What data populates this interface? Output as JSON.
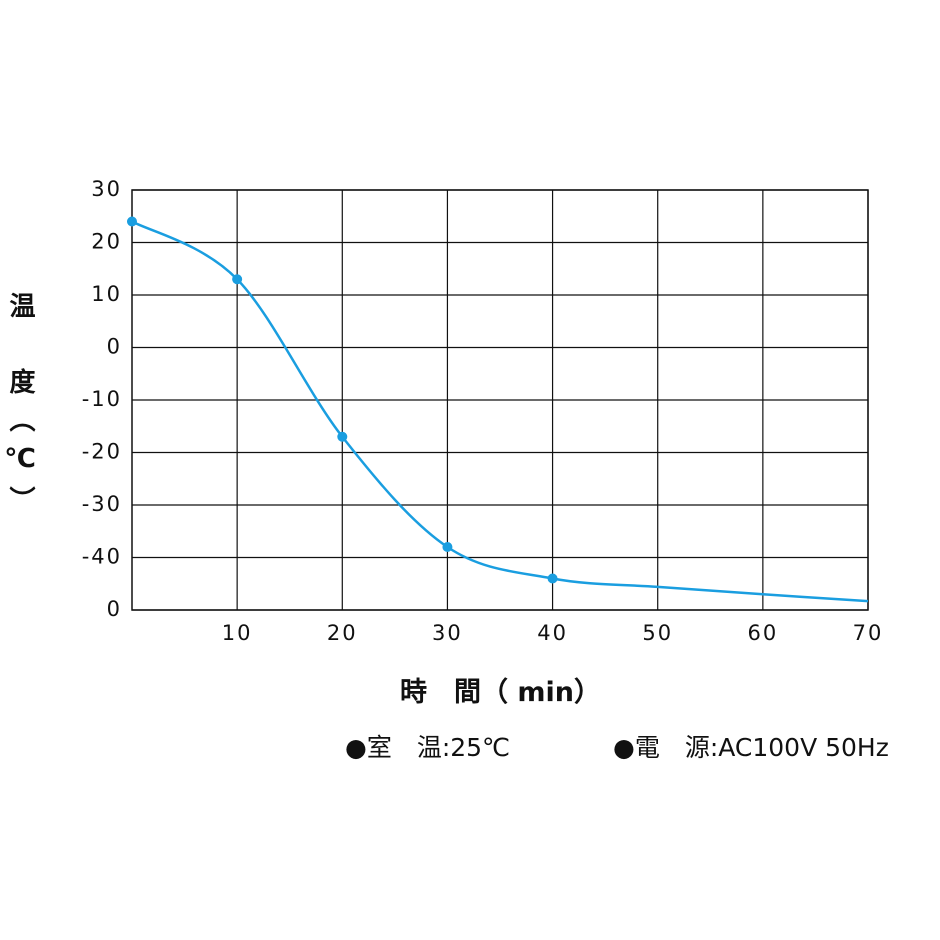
{
  "chart_data": {
    "type": "line",
    "ylabel": "温　度（℃）",
    "xlabel": "時　間（ min）",
    "notes": [
      "●室　温:25℃",
      "●電　源:AC100V 50Hz"
    ],
    "x": [
      0,
      10,
      20,
      30,
      40,
      50,
      60,
      70
    ],
    "series": [
      {
        "color": "#1a9ee0",
        "values": [
          24,
          13,
          -17,
          -38,
          -44,
          -45.6,
          -47,
          -48.3
        ],
        "markers": [
          true,
          true,
          true,
          true,
          true,
          false,
          false,
          false
        ]
      }
    ],
    "xlim": [
      0,
      70
    ],
    "xticks": [
      10,
      20,
      30,
      40,
      50,
      60,
      70
    ],
    "ylim": [
      -50,
      30
    ],
    "yticks": [
      {
        "value": -50,
        "label": "0"
      },
      -40,
      -30,
      -20,
      -10,
      0,
      10,
      20,
      30
    ],
    "grid": true
  }
}
